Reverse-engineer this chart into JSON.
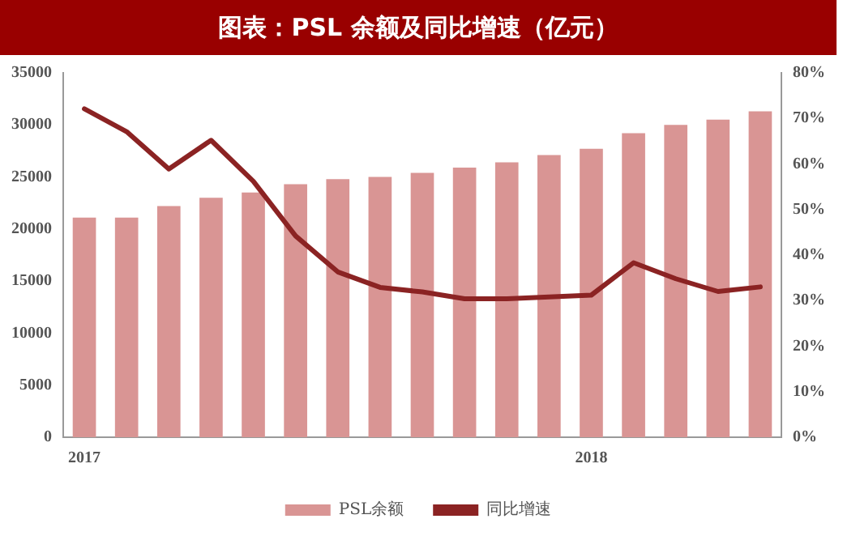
{
  "chart_data": {
    "type": "bar",
    "title": "图表：PSL 余额及同比增速（亿元）",
    "categories": [
      "2017",
      null,
      null,
      null,
      null,
      null,
      null,
      null,
      null,
      null,
      null,
      null,
      "2018",
      null,
      null,
      null,
      null
    ],
    "series": [
      {
        "name": "PSL余额",
        "color": "#d99594",
        "values": [
          21100,
          21100,
          22200,
          23000,
          23500,
          24300,
          24800,
          25000,
          25400,
          25900,
          26400,
          27100,
          27700,
          29200,
          30000,
          30500,
          31300
        ]
      },
      {
        "name": "同比增速",
        "type": "line",
        "axis": "y2",
        "color": "#8b2323",
        "values": [
          72.1,
          67.1,
          58.9,
          65.2,
          56.2,
          44.2,
          36.3,
          32.9,
          31.9,
          30.4,
          30.4,
          30.8,
          31.2,
          38.3,
          34.8,
          32.0,
          33.0
        ]
      }
    ],
    "ylim": [
      0,
      35000
    ],
    "yticks": [
      0,
      5000,
      10000,
      15000,
      20000,
      25000,
      30000,
      35000
    ],
    "y2lim": [
      0,
      80
    ],
    "y2ticks": [
      {
        "value": 0,
        "label": "0%"
      },
      {
        "value": 10,
        "label": "10%"
      },
      {
        "value": 20,
        "label": "20%"
      },
      {
        "value": 30,
        "label": "30%"
      },
      {
        "value": 40,
        "label": "40%"
      },
      {
        "value": 50,
        "label": "50%"
      },
      {
        "value": 60,
        "label": "60%"
      },
      {
        "value": 70,
        "label": "70%"
      },
      {
        "value": 80,
        "label": "80%"
      }
    ],
    "grid": false,
    "legend": "bottom",
    "marker": "none",
    "line_style": "solid"
  }
}
